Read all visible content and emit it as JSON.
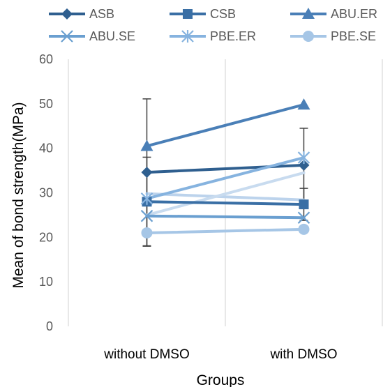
{
  "chart_data": {
    "type": "line",
    "categories": [
      "without DMSO",
      "with DMSO"
    ],
    "xlabel": "Groups",
    "ylabel": "Mean of  bond strength(MPa)",
    "ylim": [
      0,
      60
    ],
    "yticks": [
      0,
      10,
      20,
      30,
      40,
      50,
      60
    ],
    "grid": "vertical category separators",
    "legend_position": "top",
    "series": [
      {
        "name": "ASB",
        "marker": "diamond",
        "color": "#2f5f8f",
        "values": [
          34.6,
          36.2
        ],
        "error": [
          16.5,
          8.3
        ]
      },
      {
        "name": "CSB",
        "marker": "square",
        "color": "#3a6fa5",
        "values": [
          28.0,
          27.4
        ],
        "error": [
          10.0,
          3.6
        ]
      },
      {
        "name": "ABU.ER",
        "marker": "triangle",
        "color": "#4a7fb7",
        "values": [
          40.5,
          49.8
        ]
      },
      {
        "name": "ABU.SE",
        "marker": "x",
        "color": "#6a9fd0",
        "values": [
          24.8,
          24.4
        ]
      },
      {
        "name": "PBE.ER",
        "marker": "star",
        "color": "#86b3df",
        "values": [
          28.7,
          37.9
        ]
      },
      {
        "name": "PBE.SE",
        "marker": "circle",
        "color": "#a6c6e6",
        "values": [
          21.0,
          21.8
        ]
      },
      {
        "name": "",
        "marker": "none",
        "color": "#bcd3ec",
        "values": [
          29.8,
          28.4
        ]
      },
      {
        "name": "",
        "marker": "none",
        "color": "#c8dbef",
        "values": [
          25.0,
          34.5
        ]
      }
    ]
  }
}
